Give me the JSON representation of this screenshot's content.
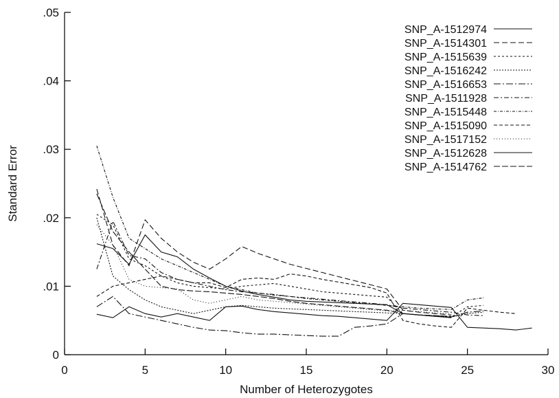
{
  "chart_data": {
    "type": "line",
    "title": "",
    "xlabel": "Number of Heterozygotes",
    "ylabel": "Standard Error",
    "xlim": [
      0,
      30
    ],
    "ylim": [
      0,
      0.05
    ],
    "xticks": [
      0,
      5,
      10,
      15,
      20,
      25,
      30
    ],
    "xtick_labels": [
      "0",
      "5",
      "10",
      "15",
      "20",
      "25",
      "30"
    ],
    "yticks": [
      0,
      0.01,
      0.02,
      0.03,
      0.04,
      0.05
    ],
    "ytick_labels": [
      "0",
      ".01",
      ".02",
      ".03",
      ".04",
      ".05"
    ],
    "grid": false,
    "legend_position": "top-right",
    "series": [
      {
        "name": "SNP_A-1512974",
        "dash": "",
        "x": [
          2,
          3,
          4,
          5,
          6,
          7,
          8,
          9,
          10,
          11,
          12,
          13,
          14,
          15,
          16,
          17,
          18,
          19,
          20,
          21,
          22,
          23,
          24,
          25,
          26,
          27,
          28,
          29
        ],
        "y": [
          0.0059,
          0.0054,
          0.007,
          0.006,
          0.0055,
          0.006,
          0.0055,
          0.005,
          0.007,
          0.0071,
          0.0066,
          0.0063,
          0.0061,
          0.0059,
          0.0057,
          0.0056,
          0.0054,
          0.0052,
          0.005,
          0.0075,
          0.0073,
          0.0071,
          0.0069,
          0.004,
          0.0039,
          0.0038,
          0.0036,
          0.0039
        ]
      },
      {
        "name": "SNP_A-1514301",
        "dash": "8,4",
        "x": [
          2,
          3,
          4,
          5,
          6,
          7,
          8,
          9,
          10,
          11,
          12,
          13,
          14,
          15,
          16,
          17,
          18,
          19,
          20,
          21,
          22,
          23,
          24
        ],
        "y": [
          0.0242,
          0.016,
          0.013,
          0.0197,
          0.017,
          0.015,
          0.0135,
          0.0125,
          0.014,
          0.0158,
          0.0148,
          0.014,
          0.0132,
          0.0126,
          0.012,
          0.0114,
          0.0108,
          0.0102,
          0.0096,
          0.0065,
          0.0062,
          0.006,
          0.0058
        ]
      },
      {
        "name": "SNP_A-1515639",
        "dash": "3,3",
        "x": [
          2,
          3,
          4,
          5,
          6,
          7,
          8,
          9,
          10,
          11,
          12,
          13,
          14,
          15,
          16,
          17,
          18,
          19,
          20,
          21,
          22,
          23,
          24,
          25,
          26
        ],
        "y": [
          0.0205,
          0.019,
          0.014,
          0.013,
          0.0115,
          0.0105,
          0.01,
          0.0098,
          0.0096,
          0.01,
          0.0102,
          0.0104,
          0.01,
          0.0096,
          0.0092,
          0.009,
          0.0088,
          0.0086,
          0.0084,
          0.006,
          0.0058,
          0.0056,
          0.0055,
          0.007,
          0.0072
        ]
      },
      {
        "name": "SNP_A-1516242",
        "dash": "2,2",
        "x": [
          2,
          3,
          4,
          5,
          6,
          7,
          8,
          9,
          10,
          11,
          12,
          13,
          14,
          15,
          16,
          17,
          18,
          19,
          20,
          21,
          22,
          23,
          24,
          25,
          26
        ],
        "y": [
          0.02,
          0.0115,
          0.0095,
          0.008,
          0.007,
          0.0065,
          0.006,
          0.0065,
          0.007,
          0.0072,
          0.007,
          0.0068,
          0.0067,
          0.0066,
          0.0065,
          0.0064,
          0.0063,
          0.0062,
          0.0061,
          0.006,
          0.0058,
          0.0056,
          0.0055,
          0.006,
          0.0062
        ]
      },
      {
        "name": "SNP_A-1516653",
        "dash": "10,3,2,3",
        "x": [
          2,
          3,
          4,
          5,
          6,
          7,
          8,
          9,
          10,
          11,
          12,
          13,
          14,
          15,
          16,
          17,
          18,
          19,
          20,
          21,
          22,
          23,
          24,
          25,
          26
        ],
        "y": [
          0.007,
          0.0085,
          0.006,
          0.0055,
          0.005,
          0.0045,
          0.004,
          0.0036,
          0.0035,
          0.0032,
          0.003,
          0.003,
          0.0029,
          0.0028,
          0.0027,
          0.0027,
          0.004,
          0.0042,
          0.0045,
          0.006,
          0.0058,
          0.0057,
          0.0055,
          0.0062,
          0.0064
        ]
      },
      {
        "name": "SNP_A-1511928",
        "dash": "7,3,2,3",
        "x": [
          2,
          3,
          4,
          5,
          6,
          7,
          8,
          9,
          10,
          11,
          12,
          13,
          14,
          15,
          16,
          17,
          18,
          19,
          20,
          21,
          22,
          23,
          24,
          25,
          26
        ],
        "y": [
          0.0125,
          0.0195,
          0.0145,
          0.014,
          0.012,
          0.011,
          0.0105,
          0.01,
          0.0095,
          0.0092,
          0.009,
          0.0088,
          0.0085,
          0.0083,
          0.0081,
          0.0079,
          0.0077,
          0.0075,
          0.0073,
          0.0068,
          0.0066,
          0.0064,
          0.0062,
          0.0058,
          0.0057
        ]
      },
      {
        "name": "SNP_A-1515448",
        "dash": "4,2,1,2",
        "x": [
          2,
          3,
          4,
          5,
          6,
          7,
          8,
          9,
          10,
          11,
          12,
          13,
          14,
          15,
          16,
          17,
          18,
          19,
          20,
          21,
          22,
          23,
          24,
          25,
          26
        ],
        "y": [
          0.0305,
          0.023,
          0.017,
          0.0155,
          0.014,
          0.013,
          0.012,
          0.011,
          0.01,
          0.0095,
          0.009,
          0.0087,
          0.0085,
          0.0082,
          0.008,
          0.0078,
          0.0076,
          0.0074,
          0.0072,
          0.007,
          0.0068,
          0.0067,
          0.0066,
          0.008,
          0.0083
        ]
      },
      {
        "name": "SNP_A-1515090",
        "dash": "5,3",
        "x": [
          2,
          3,
          4,
          5,
          6,
          7,
          8,
          9,
          10,
          11,
          12,
          13,
          14,
          15,
          16,
          17,
          18,
          19,
          20,
          21,
          22,
          23,
          24,
          25,
          26,
          27,
          28
        ],
        "y": [
          0.0085,
          0.01,
          0.0105,
          0.011,
          0.0115,
          0.011,
          0.0105,
          0.0105,
          0.0098,
          0.011,
          0.0112,
          0.011,
          0.0118,
          0.0115,
          0.011,
          0.0106,
          0.0102,
          0.0098,
          0.009,
          0.005,
          0.0045,
          0.0042,
          0.004,
          0.0068,
          0.0065,
          0.0062,
          0.006
        ]
      },
      {
        "name": "SNP_A-1517152",
        "dash": "1,3",
        "x": [
          2,
          3,
          4,
          5,
          6,
          7,
          8,
          9,
          10,
          11,
          12,
          13,
          14,
          15,
          16,
          17,
          18,
          19,
          20,
          21,
          22,
          23,
          24
        ],
        "y": [
          0.019,
          0.016,
          0.011,
          0.01,
          0.0098,
          0.0096,
          0.008,
          0.0075,
          0.008,
          0.0085,
          0.008,
          0.0078,
          0.0076,
          0.0074,
          0.0072,
          0.007,
          0.0068,
          0.0066,
          0.0064,
          0.0065,
          0.0063,
          0.0061,
          0.006
        ]
      },
      {
        "name": "SNP_A-1512628",
        "dash": "",
        "x": [
          2,
          3,
          4,
          5,
          6,
          7,
          8,
          9,
          10,
          11,
          12,
          13,
          14,
          15,
          16,
          17,
          18,
          19,
          20,
          21,
          22,
          23,
          24
        ],
        "y": [
          0.0162,
          0.0155,
          0.0132,
          0.0175,
          0.015,
          0.0143,
          0.0125,
          0.0112,
          0.01,
          0.0093,
          0.0088,
          0.0084,
          0.008,
          0.0078,
          0.0077,
          0.0076,
          0.0075,
          0.0074,
          0.0073,
          0.006,
          0.0058,
          0.0056,
          0.0054
        ]
      },
      {
        "name": "SNP_A-1514762",
        "dash": "9,3",
        "x": [
          2,
          3,
          4,
          5,
          6,
          7,
          8,
          9,
          10,
          11,
          12,
          13,
          14,
          15,
          16,
          17,
          18,
          19,
          20,
          21,
          22,
          23,
          24
        ],
        "y": [
          0.0235,
          0.018,
          0.015,
          0.0125,
          0.01,
          0.0095,
          0.0093,
          0.0092,
          0.009,
          0.0088,
          0.0085,
          0.0082,
          0.0078,
          0.0075,
          0.0073,
          0.0071,
          0.0069,
          0.0067,
          0.0065,
          0.006,
          0.0058,
          0.0057,
          0.0056
        ]
      }
    ]
  }
}
